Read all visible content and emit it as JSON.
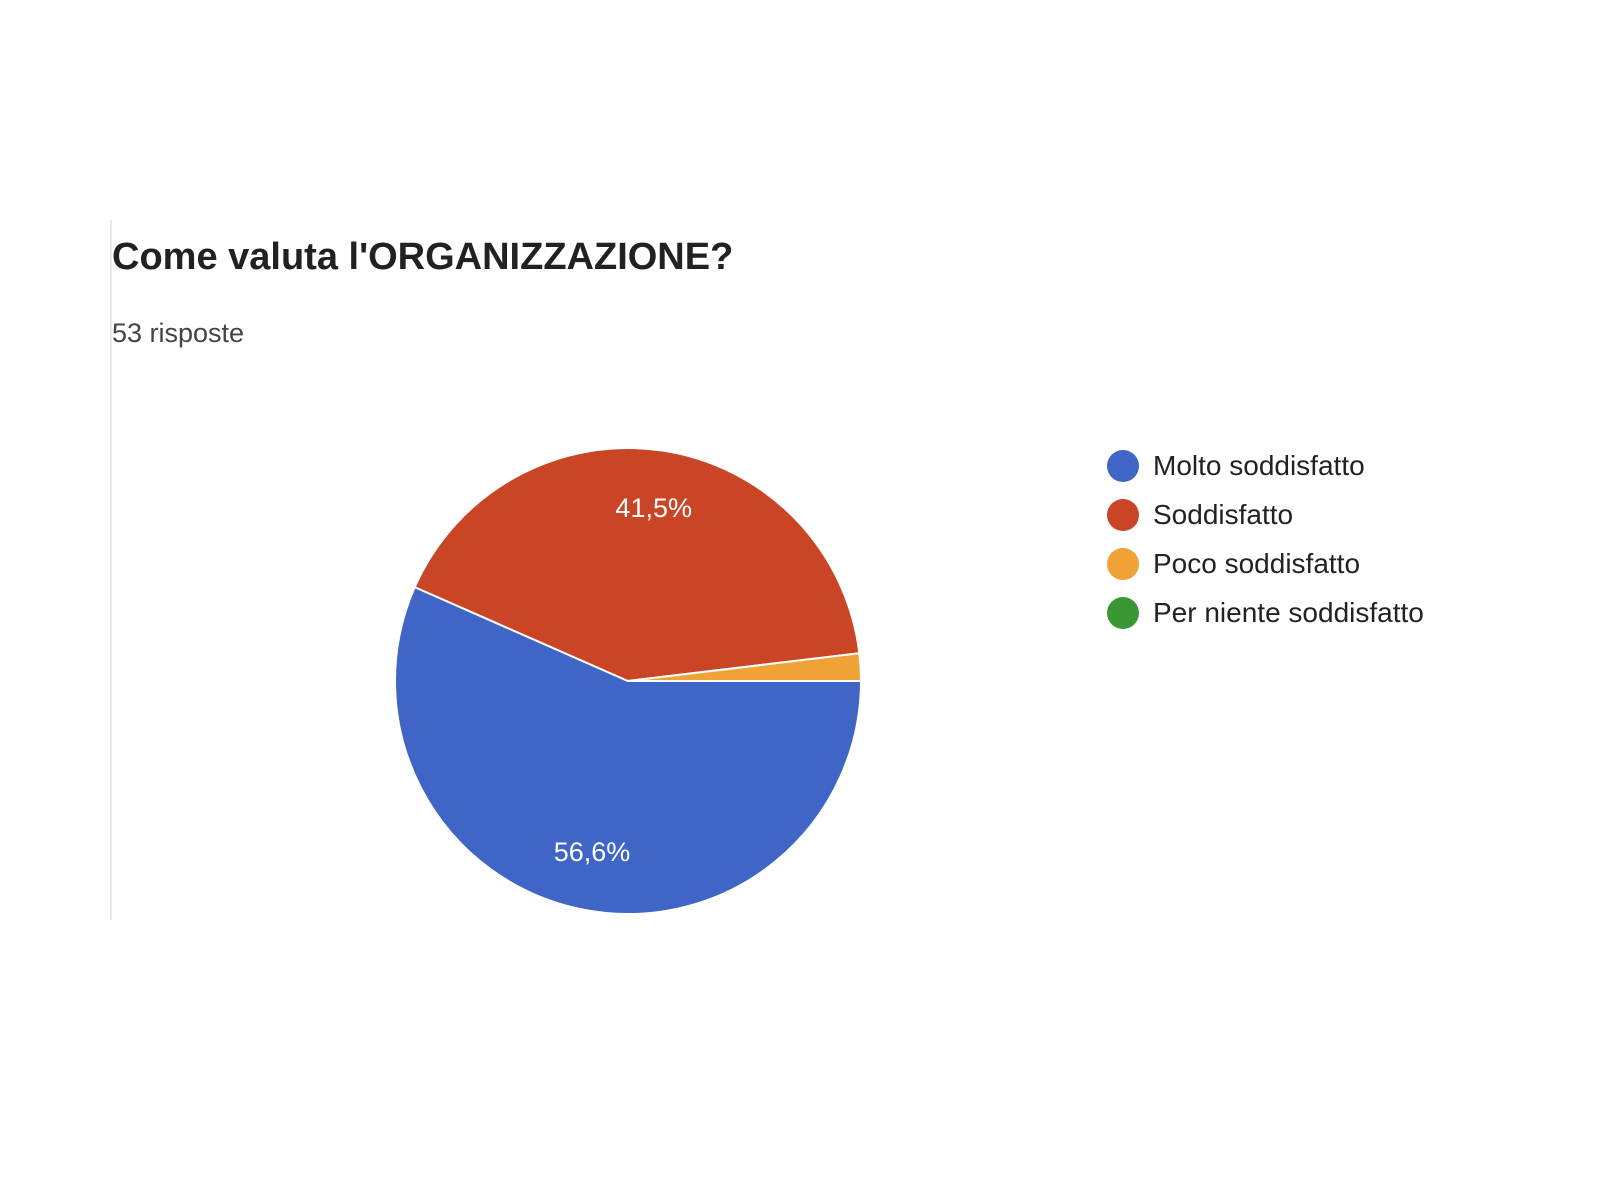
{
  "title": "Come valuta l'ORGANIZZAZIONE?",
  "subtitle": "53 risposte",
  "chart_data": {
    "type": "pie",
    "title": "Come valuta l'ORGANIZZAZIONE?",
    "slices": [
      {
        "label": "Molto soddisfatto",
        "value": 56.6,
        "display": "56,6%",
        "color": "#3f66c6"
      },
      {
        "label": "Soddisfatto",
        "value": 41.5,
        "display": "41,5%",
        "color": "#c94526"
      },
      {
        "label": "Poco soddisfatto",
        "value": 1.9,
        "display": "",
        "color": "#f0a236"
      },
      {
        "label": "Per niente soddisfatto",
        "value": 0,
        "display": "",
        "color": "#3b9634"
      }
    ],
    "legend_position": "right"
  }
}
